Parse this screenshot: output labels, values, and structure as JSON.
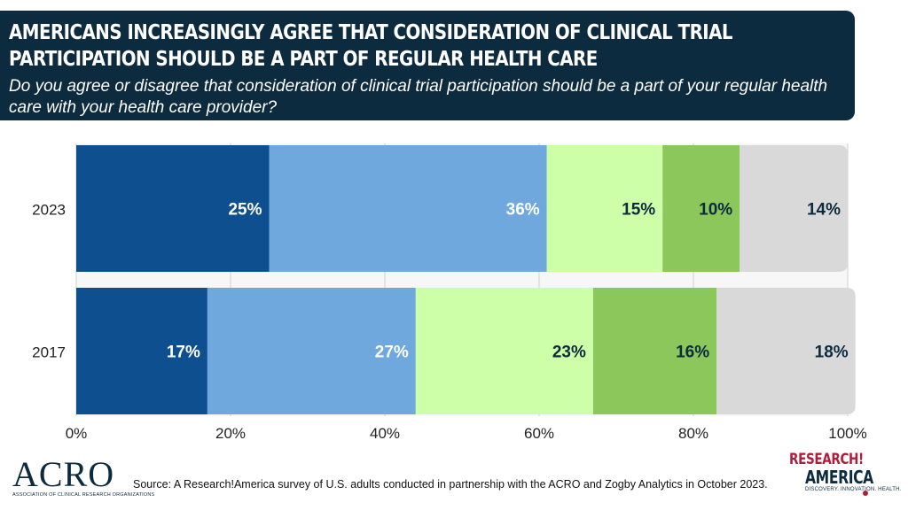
{
  "header": {
    "title": "AMERICANS INCREASINGLY AGREE THAT CONSIDERATION OF CLINICAL TRIAL PARTICIPATION SHOULD BE A PART OF REGULAR HEALTH CARE",
    "subtitle": "Do you agree or disagree that consideration of clinical trial participation should be a part of your regular health care with your health care provider?"
  },
  "footer": {
    "source": "Source: A Research!America survey of U.S. adults conducted in partnership with the ACRO and Zogby Analytics in October 2023.",
    "acro_logo": "ACRO",
    "acro_tagline": "ASSOCIATION OF CLINICAL RESEARCH ORGANIZATIONS",
    "ra_logo_line1": "RESEARCH!",
    "ra_logo_line2": "AMERICA",
    "ra_tagline": "DISCOVERY. INNOVATION. HEALTH."
  },
  "chart_data": {
    "type": "bar",
    "orientation": "horizontal",
    "stacked": true,
    "categories": [
      "2023",
      "2017"
    ],
    "series": [
      {
        "values": [
          25,
          17
        ],
        "color": "#0e4f8f",
        "label_color": "#ffffff"
      },
      {
        "values": [
          36,
          27
        ],
        "color": "#6fa8dc",
        "label_color": "#ffffff"
      },
      {
        "values": [
          15,
          23
        ],
        "color": "#ccffa8",
        "label_color": "#0d2b3e"
      },
      {
        "values": [
          10,
          16
        ],
        "color": "#8bc75a",
        "label_color": "#0d2b3e"
      },
      {
        "values": [
          14,
          18
        ],
        "color": "#d9d9d9",
        "label_color": "#0d2b3e"
      }
    ],
    "value_suffix": "%",
    "xlim": [
      0,
      100
    ],
    "xticks": [
      "0%",
      "20%",
      "40%",
      "60%",
      "80%",
      "100%"
    ],
    "grid": true,
    "legend": "none"
  }
}
